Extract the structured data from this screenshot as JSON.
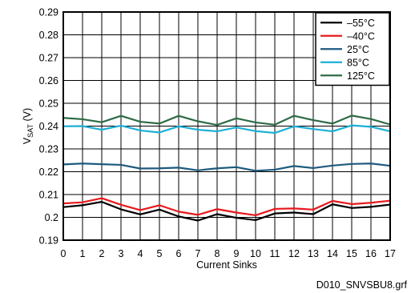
{
  "chart_data": {
    "type": "line",
    "xlabel": "Current Sinks",
    "ylabel_main": "V",
    "ylabel_sub": "SAT",
    "ylabel_unit": " (V)",
    "xlim": [
      0,
      17
    ],
    "ylim": [
      0.19,
      0.29
    ],
    "x": [
      0,
      1,
      2,
      3,
      4,
      5,
      6,
      7,
      8,
      9,
      10,
      11,
      12,
      13,
      14,
      15,
      16,
      17
    ],
    "xticks": [
      "0",
      "1",
      "2",
      "3",
      "4",
      "5",
      "6",
      "7",
      "8",
      "9",
      "10",
      "11",
      "12",
      "13",
      "14",
      "15",
      "16",
      "17"
    ],
    "yticks": [
      "0.19",
      "0.2",
      "0.21",
      "0.22",
      "0.23",
      "0.24",
      "0.25",
      "0.26",
      "0.27",
      "0.28",
      "0.29"
    ],
    "grid": true,
    "legend_position": "top-right",
    "series": [
      {
        "name": "–55°C",
        "color": "#000000",
        "values": [
          0.2045,
          0.2053,
          0.2068,
          0.2035,
          0.2013,
          0.2034,
          0.2004,
          0.1986,
          0.2014,
          0.1998,
          0.1988,
          0.2017,
          0.2021,
          0.2014,
          0.2057,
          0.2041,
          0.2046,
          0.2056
        ]
      },
      {
        "name": "–40°C",
        "color": "#e8191c",
        "values": [
          0.2061,
          0.2066,
          0.2084,
          0.2055,
          0.2032,
          0.2053,
          0.2025,
          0.2011,
          0.2036,
          0.2021,
          0.2009,
          0.2037,
          0.2039,
          0.2034,
          0.2072,
          0.2058,
          0.2064,
          0.2073
        ]
      },
      {
        "name": "25°C",
        "color": "#1e5a7e",
        "values": [
          0.2232,
          0.2236,
          0.2233,
          0.223,
          0.2214,
          0.2215,
          0.2218,
          0.2206,
          0.2215,
          0.222,
          0.2204,
          0.2209,
          0.2225,
          0.2216,
          0.2227,
          0.2234,
          0.2236,
          0.2226
        ]
      },
      {
        "name": "85°C",
        "color": "#1cb0d6",
        "values": [
          0.2399,
          0.24,
          0.2384,
          0.2402,
          0.2381,
          0.2372,
          0.2399,
          0.2384,
          0.2377,
          0.2394,
          0.2378,
          0.237,
          0.2399,
          0.2387,
          0.2377,
          0.2403,
          0.2397,
          0.2377
        ]
      },
      {
        "name": "125°C",
        "color": "#2e6b47",
        "values": [
          0.2436,
          0.243,
          0.2417,
          0.2445,
          0.2419,
          0.2411,
          0.2445,
          0.2421,
          0.2405,
          0.2434,
          0.2416,
          0.2406,
          0.2445,
          0.2426,
          0.2411,
          0.2446,
          0.2431,
          0.2407
        ]
      }
    ],
    "footnote": "D010_SNVSBU8.grf"
  }
}
